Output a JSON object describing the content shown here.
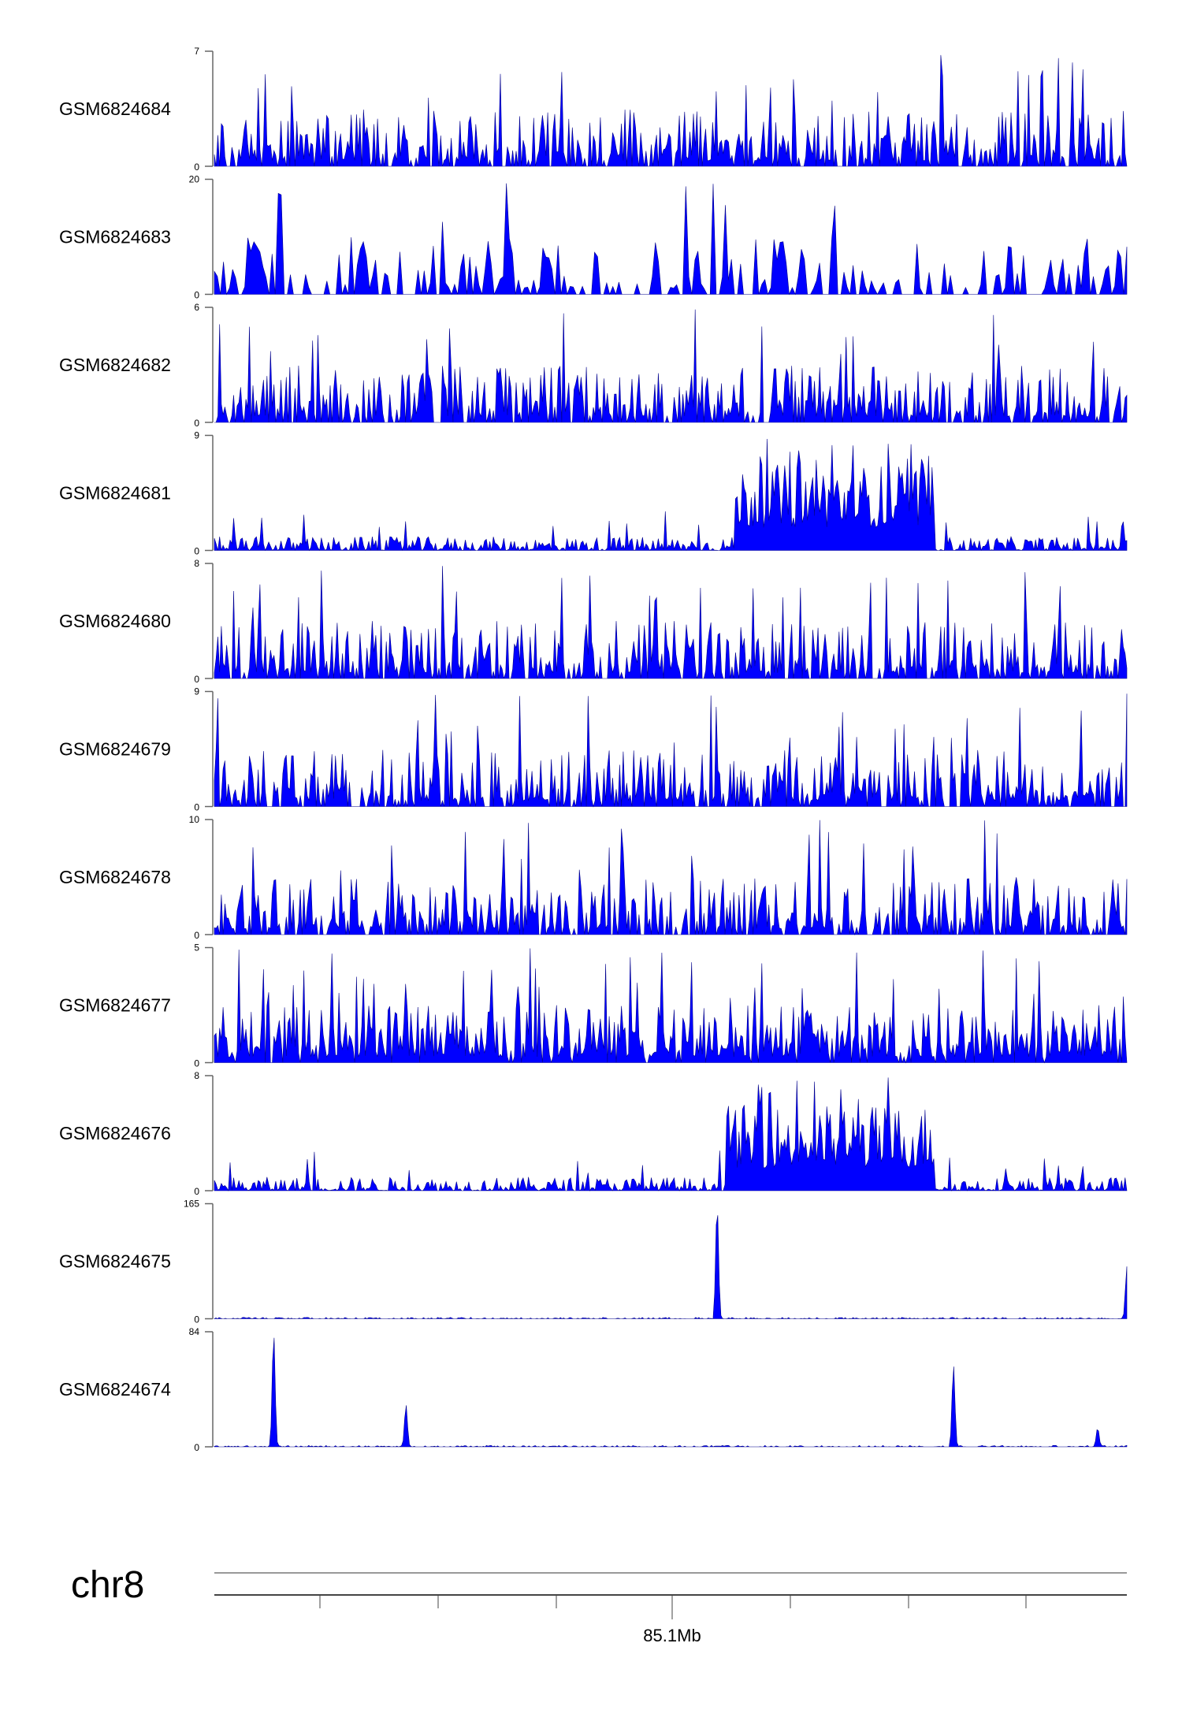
{
  "chart_data": {
    "type": "area",
    "title": "",
    "chromosome": "chr8",
    "x_axis_label": "85.1Mb",
    "x_minor_tick_count": 7,
    "series_color": "#0000ff",
    "outline_color": "#00008b",
    "tracks": [
      {
        "name": "GSM6824684",
        "ylim": [
          0,
          7
        ],
        "profile": "uniform-noise",
        "peaks": []
      },
      {
        "name": "GSM6824683",
        "ylim": [
          0,
          20
        ],
        "profile": "sparse-noise",
        "peaks": []
      },
      {
        "name": "GSM6824682",
        "ylim": [
          0,
          6
        ],
        "profile": "uniform-noise",
        "peaks": []
      },
      {
        "name": "GSM6824681",
        "ylim": [
          0,
          9
        ],
        "profile": "enriched-region",
        "region": [
          0.57,
          0.79
        ],
        "peaks": []
      },
      {
        "name": "GSM6824680",
        "ylim": [
          0,
          8
        ],
        "profile": "uniform-noise",
        "peaks": []
      },
      {
        "name": "GSM6824679",
        "ylim": [
          0,
          9
        ],
        "profile": "uniform-noise",
        "peaks": []
      },
      {
        "name": "GSM6824678",
        "ylim": [
          0,
          10
        ],
        "profile": "uniform-noise",
        "peaks": []
      },
      {
        "name": "GSM6824677",
        "ylim": [
          0,
          5
        ],
        "profile": "dense-noise",
        "peaks": []
      },
      {
        "name": "GSM6824676",
        "ylim": [
          0,
          8
        ],
        "profile": "enriched-region",
        "region": [
          0.56,
          0.79
        ],
        "peaks": []
      },
      {
        "name": "GSM6824675",
        "ylim": [
          0,
          165
        ],
        "profile": "flat",
        "peaks": [
          {
            "pos": 0.551,
            "value": 165
          },
          {
            "pos": 1.0,
            "value": 75
          }
        ]
      },
      {
        "name": "GSM6824674",
        "ylim": [
          0,
          84
        ],
        "profile": "flat",
        "peaks": [
          {
            "pos": 0.065,
            "value": 84
          },
          {
            "pos": 0.21,
            "value": 31
          },
          {
            "pos": 0.81,
            "value": 60
          },
          {
            "pos": 0.968,
            "value": 14
          }
        ]
      }
    ]
  }
}
